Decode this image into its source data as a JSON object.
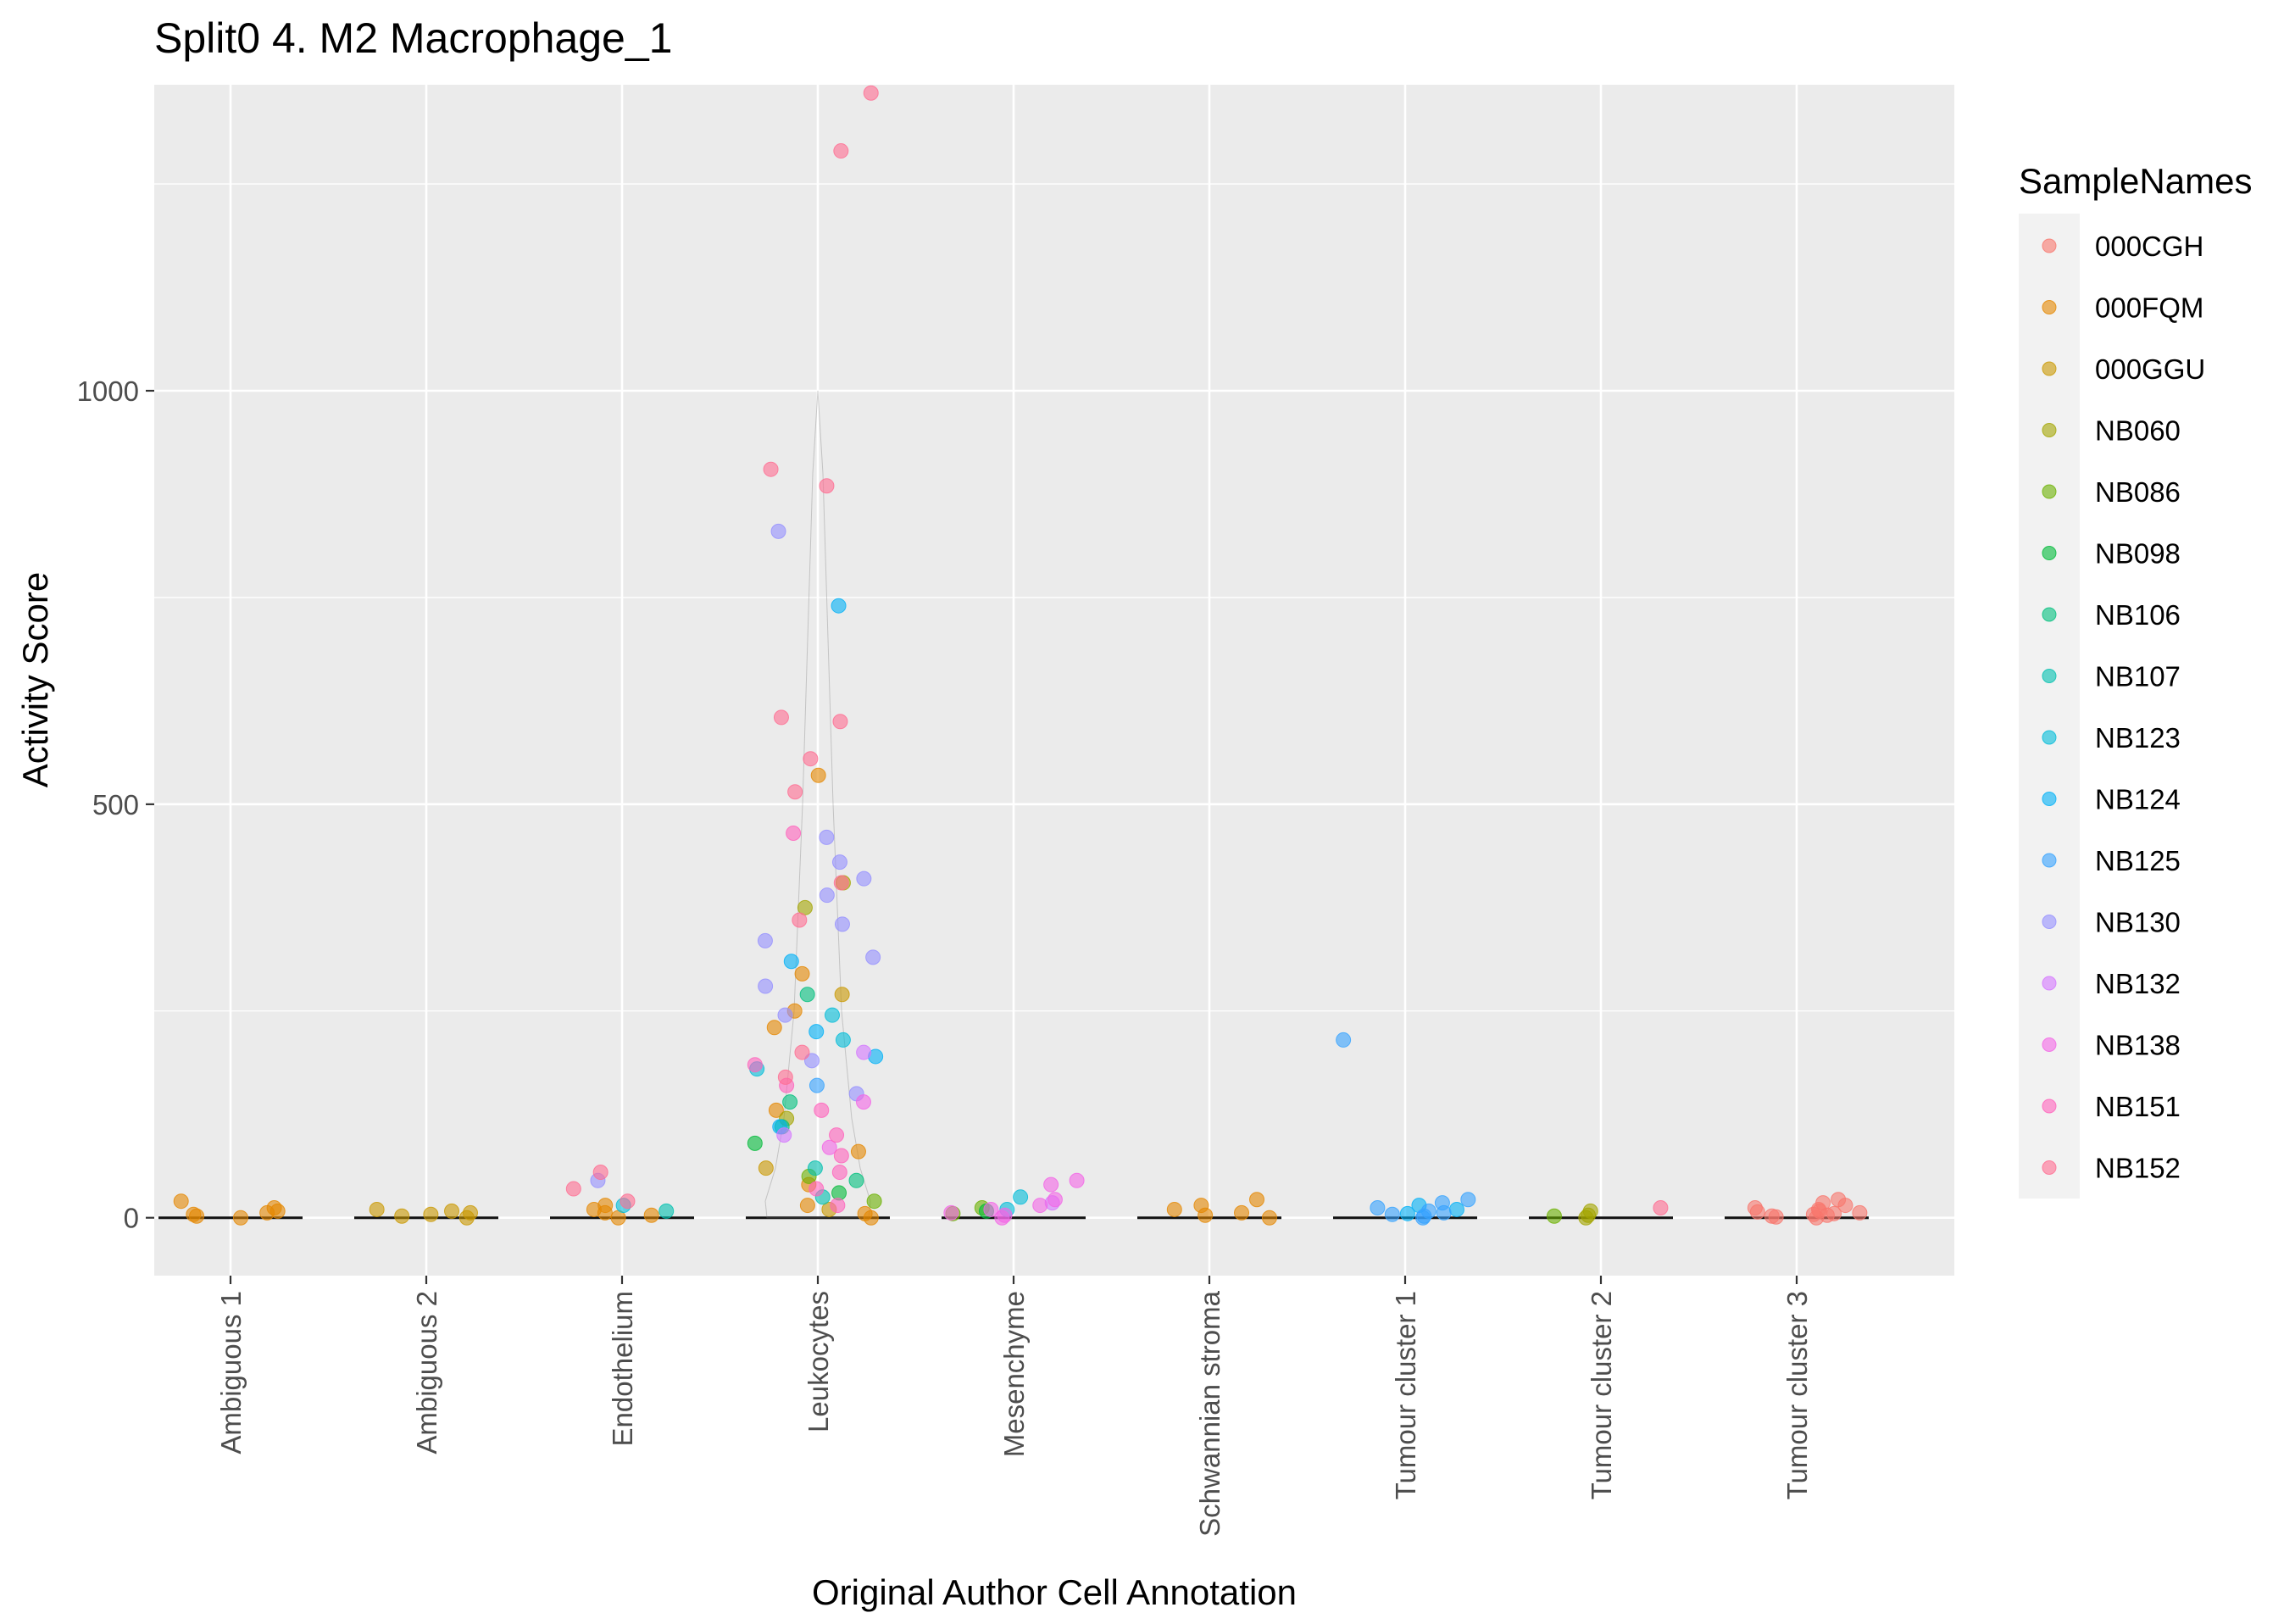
{
  "chart_data": {
    "type": "scatter",
    "title": "Split0 4. M2 Macrophage_1",
    "xlabel": "Original Author Cell Annotation",
    "ylabel": "Activity Score",
    "ylim": [
      -70,
      1370
    ],
    "yticks": [
      0,
      500,
      1000
    ],
    "grid": true,
    "legend": {
      "title": "SampleNames",
      "position": "right"
    },
    "categories": [
      "Ambiguous 1",
      "Ambiguous 2",
      "Endothelium",
      "Leukocytes",
      "Mesenchyme",
      "Schwannian stroma",
      "Tumour cluster 1",
      "Tumour cluster 2",
      "Tumour cluster 3"
    ],
    "series": [
      {
        "name": "000CGH",
        "color": "#F8766D",
        "points": [
          [
            "Tumour cluster 3",
            0
          ],
          [
            "Tumour cluster 3",
            2
          ],
          [
            "Tumour cluster 3",
            4
          ],
          [
            "Tumour cluster 3",
            6
          ],
          [
            "Tumour cluster 3",
            8
          ],
          [
            "Tumour cluster 3",
            10
          ],
          [
            "Tumour cluster 3",
            12
          ],
          [
            "Tumour cluster 3",
            15
          ],
          [
            "Tumour cluster 3",
            18
          ],
          [
            "Tumour cluster 3",
            22
          ],
          [
            "Tumour cluster 3",
            3
          ],
          [
            "Tumour cluster 3",
            1
          ],
          [
            "Tumour cluster 3",
            5
          ],
          [
            "Tumour cluster 3",
            7
          ]
        ]
      },
      {
        "name": "000FQM",
        "color": "#E58700",
        "points": [
          [
            "Ambiguous 1",
            0
          ],
          [
            "Ambiguous 1",
            2
          ],
          [
            "Ambiguous 1",
            4
          ],
          [
            "Ambiguous 1",
            6
          ],
          [
            "Ambiguous 1",
            8
          ],
          [
            "Ambiguous 1",
            12
          ],
          [
            "Ambiguous 1",
            20
          ],
          [
            "Endothelium",
            0
          ],
          [
            "Endothelium",
            3
          ],
          [
            "Endothelium",
            6
          ],
          [
            "Endothelium",
            10
          ],
          [
            "Endothelium",
            15
          ],
          [
            "Leukocytes",
            0
          ],
          [
            "Leukocytes",
            5
          ],
          [
            "Leukocytes",
            15
          ],
          [
            "Leukocytes",
            40
          ],
          [
            "Leukocytes",
            80
          ],
          [
            "Leukocytes",
            130
          ],
          [
            "Leukocytes",
            230
          ],
          [
            "Leukocytes",
            250
          ],
          [
            "Leukocytes",
            295
          ],
          [
            "Leukocytes",
            535
          ],
          [
            "Schwannian stroma",
            0
          ],
          [
            "Schwannian stroma",
            3
          ],
          [
            "Schwannian stroma",
            6
          ],
          [
            "Schwannian stroma",
            10
          ],
          [
            "Schwannian stroma",
            15
          ],
          [
            "Schwannian stroma",
            22
          ]
        ]
      },
      {
        "name": "000GGU",
        "color": "#C99800",
        "points": [
          [
            "Ambiguous 2",
            0
          ],
          [
            "Ambiguous 2",
            2
          ],
          [
            "Ambiguous 2",
            4
          ],
          [
            "Ambiguous 2",
            6
          ],
          [
            "Ambiguous 2",
            8
          ],
          [
            "Ambiguous 2",
            10
          ],
          [
            "Leukocytes",
            10
          ],
          [
            "Leukocytes",
            60
          ],
          [
            "Leukocytes",
            270
          ]
        ]
      },
      {
        "name": "NB060",
        "color": "#A3A500",
        "points": [
          [
            "Leukocytes",
            375
          ],
          [
            "Leukocytes",
            405
          ],
          [
            "Leukocytes",
            120
          ],
          [
            "Tumour cluster 2",
            0
          ],
          [
            "Tumour cluster 2",
            3
          ],
          [
            "Tumour cluster 2",
            8
          ]
        ]
      },
      {
        "name": "NB086",
        "color": "#6BB100",
        "points": [
          [
            "Leukocytes",
            20
          ],
          [
            "Leukocytes",
            50
          ],
          [
            "Mesenchyme",
            5
          ],
          [
            "Mesenchyme",
            12
          ],
          [
            "Tumour cluster 2",
            2
          ]
        ]
      },
      {
        "name": "NB098",
        "color": "#00BA38",
        "points": [
          [
            "Leukocytes",
            30
          ],
          [
            "Leukocytes",
            90
          ],
          [
            "Mesenchyme",
            8
          ]
        ]
      },
      {
        "name": "NB106",
        "color": "#00BF7D",
        "points": [
          [
            "Leukocytes",
            140
          ],
          [
            "Leukocytes",
            270
          ],
          [
            "Leukocytes",
            110
          ],
          [
            "Leukocytes",
            45
          ]
        ]
      },
      {
        "name": "NB107",
        "color": "#00C0AF",
        "points": [
          [
            "Leukocytes",
            60
          ],
          [
            "Leukocytes",
            25
          ],
          [
            "Endothelium",
            8
          ]
        ]
      },
      {
        "name": "NB123",
        "color": "#00BCD8",
        "points": [
          [
            "Leukocytes",
            245
          ],
          [
            "Leukocytes",
            215
          ],
          [
            "Leukocytes",
            180
          ],
          [
            "Mesenchyme",
            25
          ],
          [
            "Mesenchyme",
            10
          ],
          [
            "Endothelium",
            15
          ]
        ]
      },
      {
        "name": "NB124",
        "color": "#00B0F6",
        "points": [
          [
            "Leukocytes",
            740
          ],
          [
            "Leukocytes",
            310
          ],
          [
            "Leukocytes",
            225
          ],
          [
            "Leukocytes",
            195
          ],
          [
            "Leukocytes",
            110
          ],
          [
            "Tumour cluster 1",
            5
          ],
          [
            "Tumour cluster 1",
            10
          ],
          [
            "Tumour cluster 1",
            15
          ]
        ]
      },
      {
        "name": "NB125",
        "color": "#35A2FF",
        "points": [
          [
            "Tumour cluster 1",
            215
          ],
          [
            "Tumour cluster 1",
            0
          ],
          [
            "Tumour cluster 1",
            2
          ],
          [
            "Tumour cluster 1",
            4
          ],
          [
            "Tumour cluster 1",
            6
          ],
          [
            "Tumour cluster 1",
            8
          ],
          [
            "Tumour cluster 1",
            12
          ],
          [
            "Tumour cluster 1",
            18
          ],
          [
            "Tumour cluster 1",
            22
          ],
          [
            "Leukocytes",
            160
          ]
        ]
      },
      {
        "name": "NB130",
        "color": "#9590FF",
        "points": [
          [
            "Leukocytes",
            830
          ],
          [
            "Leukocytes",
            460
          ],
          [
            "Leukocytes",
            430
          ],
          [
            "Leukocytes",
            410
          ],
          [
            "Leukocytes",
            390
          ],
          [
            "Leukocytes",
            355
          ],
          [
            "Leukocytes",
            335
          ],
          [
            "Leukocytes",
            315
          ],
          [
            "Leukocytes",
            280
          ],
          [
            "Leukocytes",
            245
          ],
          [
            "Leukocytes",
            190
          ],
          [
            "Leukocytes",
            150
          ],
          [
            "Endothelium",
            45
          ]
        ]
      },
      {
        "name": "NB132",
        "color": "#D376FF",
        "points": [
          [
            "Leukocytes",
            200
          ],
          [
            "Leukocytes",
            100
          ],
          [
            "Mesenchyme",
            18
          ]
        ]
      },
      {
        "name": "NB138",
        "color": "#F365E6",
        "points": [
          [
            "Mesenchyme",
            0
          ],
          [
            "Mesenchyme",
            3
          ],
          [
            "Mesenchyme",
            6
          ],
          [
            "Mesenchyme",
            10
          ],
          [
            "Mesenchyme",
            15
          ],
          [
            "Mesenchyme",
            22
          ],
          [
            "Mesenchyme",
            40
          ],
          [
            "Mesenchyme",
            45
          ],
          [
            "Leukocytes",
            85
          ],
          [
            "Leukocytes",
            140
          ]
        ]
      },
      {
        "name": "NB151",
        "color": "#FF62BC",
        "points": [
          [
            "Leukocytes",
            465
          ],
          [
            "Leukocytes",
            185
          ],
          [
            "Leukocytes",
            160
          ],
          [
            "Leukocytes",
            130
          ],
          [
            "Leukocytes",
            100
          ],
          [
            "Leukocytes",
            75
          ],
          [
            "Leukocytes",
            55
          ],
          [
            "Leukocytes",
            35
          ],
          [
            "Leukocytes",
            15
          ]
        ]
      },
      {
        "name": "NB152",
        "color": "#FF6C91",
        "points": [
          [
            "Leukocytes",
            1360
          ],
          [
            "Leukocytes",
            1290
          ],
          [
            "Leukocytes",
            905
          ],
          [
            "Leukocytes",
            885
          ],
          [
            "Leukocytes",
            605
          ],
          [
            "Leukocytes",
            600
          ],
          [
            "Leukocytes",
            555
          ],
          [
            "Leukocytes",
            515
          ],
          [
            "Leukocytes",
            405
          ],
          [
            "Leukocytes",
            360
          ],
          [
            "Leukocytes",
            200
          ],
          [
            "Leukocytes",
            170
          ],
          [
            "Endothelium",
            55
          ],
          [
            "Endothelium",
            35
          ],
          [
            "Endothelium",
            20
          ],
          [
            "Tumour cluster 2",
            12
          ]
        ]
      }
    ]
  }
}
